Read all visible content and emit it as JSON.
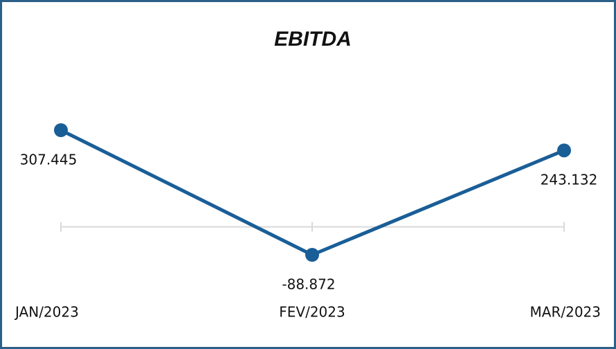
{
  "chart_data": {
    "type": "line",
    "title": "EBITDA",
    "categories": [
      "JAN/2023",
      "FEV/2023",
      "MAR/2023"
    ],
    "series": [
      {
        "name": "EBITDA",
        "color": "#1a5e97",
        "values": [
          307445,
          -88872,
          243132
        ],
        "value_labels": [
          "307.445",
          "-88.872",
          "243.132"
        ]
      }
    ]
  }
}
